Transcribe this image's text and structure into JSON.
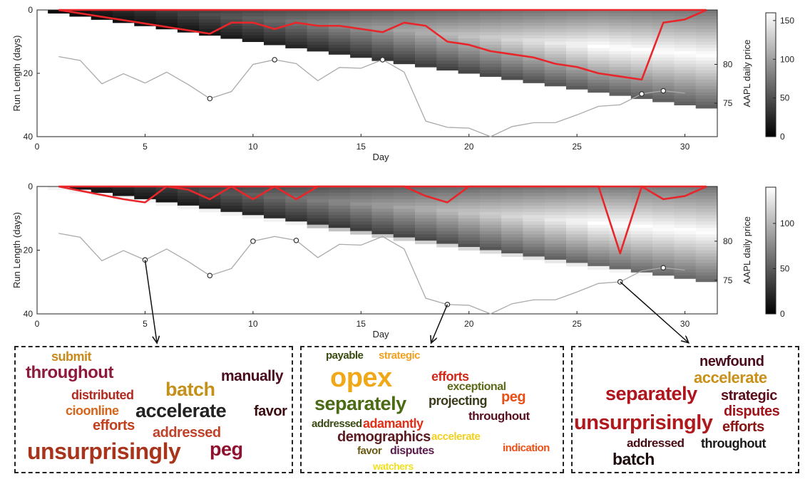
{
  "panels": [
    {
      "xlabel": "Day",
      "ylabel": "Run Length (days)",
      "ylabel2": "AAPL daily price",
      "x_ticks": [
        "0",
        "5",
        "10",
        "15",
        "20",
        "25",
        "30"
      ],
      "y_ticks": [
        "0",
        "20",
        "40"
      ],
      "price_ticks": [
        "80",
        "75"
      ],
      "colorbar_ticks": [
        "150",
        "100",
        "50",
        "0"
      ]
    },
    {
      "xlabel": "Day",
      "ylabel": "Run Length (days)",
      "ylabel2": "AAPL daily price",
      "x_ticks": [
        "0",
        "5",
        "10",
        "15",
        "20",
        "25",
        "30"
      ],
      "y_ticks": [
        "0",
        "20",
        "40"
      ],
      "price_ticks": [
        "80",
        "75"
      ],
      "colorbar_ticks": [
        "100",
        "50",
        "0"
      ]
    }
  ],
  "clouds": [
    {
      "words": [
        {
          "text": "submit",
          "color": "#c98a1a"
        },
        {
          "text": "throughout",
          "color": "#8e1a3c"
        },
        {
          "text": "manually",
          "color": "#4a0c1c"
        },
        {
          "text": "batch",
          "color": "#c49018"
        },
        {
          "text": "distributed",
          "color": "#b02a20"
        },
        {
          "text": "cioonline",
          "color": "#d4651a"
        },
        {
          "text": "accelerate",
          "color": "#222222"
        },
        {
          "text": "favor",
          "color": "#3a0c10"
        },
        {
          "text": "efforts",
          "color": "#c2401e"
        },
        {
          "text": "addressed",
          "color": "#c0422a"
        },
        {
          "text": "unsurprisingly",
          "color": "#a8341c"
        },
        {
          "text": "peg",
          "color": "#8e1230"
        }
      ]
    },
    {
      "words": [
        {
          "text": "payable",
          "color": "#3a4a10"
        },
        {
          "text": "strategic",
          "color": "#f0a020"
        },
        {
          "text": "opex",
          "color": "#f0a818"
        },
        {
          "text": "efforts",
          "color": "#d02818"
        },
        {
          "text": "exceptional",
          "color": "#5a6a18"
        },
        {
          "text": "separately",
          "color": "#4a6a14"
        },
        {
          "text": "projecting",
          "color": "#3a3a1a"
        },
        {
          "text": "peg",
          "color": "#e85018"
        },
        {
          "text": "throughout",
          "color": "#5a1020"
        },
        {
          "text": "addressed",
          "color": "#3a4a14"
        },
        {
          "text": "adamantly",
          "color": "#e03018"
        },
        {
          "text": "accelerate",
          "color": "#f0d020"
        },
        {
          "text": "demographics",
          "color": "#5a1c20"
        },
        {
          "text": "favor",
          "color": "#6a5a14"
        },
        {
          "text": "disputes",
          "color": "#5a1c4c"
        },
        {
          "text": "indication",
          "color": "#f05018"
        },
        {
          "text": "watchers",
          "color": "#f0e020"
        }
      ]
    },
    {
      "words": [
        {
          "text": "newfound",
          "color": "#4a0c1c"
        },
        {
          "text": "accelerate",
          "color": "#c89018"
        },
        {
          "text": "separately",
          "color": "#b0141c"
        },
        {
          "text": "strategic",
          "color": "#5a0c18"
        },
        {
          "text": "disputes",
          "color": "#a0141c"
        },
        {
          "text": "unsurprisingly",
          "color": "#b0181c"
        },
        {
          "text": "efforts",
          "color": "#8a1414"
        },
        {
          "text": "addressed",
          "color": "#4a0c14"
        },
        {
          "text": "throughout",
          "color": "#1a1a1a"
        },
        {
          "text": "batch",
          "color": "#1a0a0a"
        }
      ]
    }
  ],
  "chart_data": [
    {
      "type": "heatmap",
      "xlabel": "Day",
      "ylabel": "Run Length (days)",
      "ylabel2": "AAPL daily price",
      "xlim": [
        0,
        31.5
      ],
      "ylim": [
        0,
        40
      ],
      "price_lim": [
        70.7,
        87
      ],
      "colorbar_range": [
        0,
        160
      ],
      "colormap": "gray",
      "series": [
        {
          "color": "#e8262a",
          "x": [
            1,
            8,
            9,
            10,
            11,
            12,
            13,
            14,
            15,
            16,
            17,
            18,
            19,
            20,
            21,
            22,
            23,
            24,
            25,
            26,
            27,
            28,
            29,
            30,
            31
          ],
          "y": [
            0,
            7.5,
            4,
            4,
            6,
            4,
            5,
            5,
            6,
            7,
            4,
            5,
            10,
            11,
            13,
            14,
            15,
            17,
            18,
            20,
            21,
            22,
            4,
            3,
            0
          ]
        },
        {
          "color": "#aaaaaa",
          "x": [
            1,
            2,
            3,
            4,
            5,
            6,
            7,
            8,
            9,
            10,
            11,
            12,
            13,
            14,
            15,
            16,
            17,
            18,
            19,
            20,
            21,
            22,
            23,
            24,
            25,
            26,
            27,
            28,
            29,
            30
          ],
          "y": [
            81,
            80.5,
            77.5,
            78.8,
            77.6,
            79,
            77.4,
            75.6,
            76.5,
            80,
            80.6,
            80.1,
            77.9,
            79.6,
            79.5,
            80.6,
            79,
            72.7,
            71.9,
            71.8,
            70.7,
            72,
            72.5,
            72.5,
            73.5,
            74.6,
            74.8,
            76.2,
            76.6,
            76.3
          ]
        }
      ],
      "markers": [
        {
          "x": 8,
          "y": 75.6
        },
        {
          "x": 11,
          "y": 80.6
        },
        {
          "x": 16,
          "y": 80.6
        },
        {
          "x": 28,
          "y": 76.2
        },
        {
          "x": 29,
          "y": 76.6
        }
      ]
    },
    {
      "type": "heatmap",
      "xlabel": "Day",
      "ylabel": "Run Length (days)",
      "ylabel2": "AAPL daily price",
      "xlim": [
        0,
        31.5
      ],
      "ylim": [
        0,
        40
      ],
      "price_lim": [
        70.7,
        87
      ],
      "colorbar_range": [
        0,
        140
      ],
      "colormap": "gray",
      "series": [
        {
          "color": "#e8262a",
          "x": [
            1,
            4,
            5,
            6,
            7,
            8,
            9,
            10,
            11,
            12,
            13,
            14,
            15,
            16,
            17,
            18,
            19,
            20,
            21,
            22,
            23,
            24,
            25,
            26,
            27,
            28,
            29,
            30,
            31
          ],
          "y": [
            0,
            4,
            5,
            0,
            1,
            4,
            0,
            4,
            0,
            4,
            0,
            0,
            0,
            0,
            0,
            3,
            5,
            0,
            0,
            0,
            0,
            0,
            0,
            0,
            21,
            0,
            4,
            3,
            0
          ]
        },
        {
          "color": "#aaaaaa",
          "x": [
            1,
            2,
            3,
            4,
            5,
            6,
            7,
            8,
            9,
            10,
            11,
            12,
            13,
            14,
            15,
            16,
            17,
            18,
            19,
            20,
            21,
            22,
            23,
            24,
            25,
            26,
            27,
            28,
            29,
            30
          ],
          "y": [
            81,
            80.5,
            77.5,
            78.8,
            77.6,
            79,
            77.4,
            75.6,
            76.5,
            80,
            80.6,
            80.1,
            77.9,
            79.6,
            79.5,
            80.6,
            79,
            72.7,
            71.9,
            71.8,
            70.7,
            72,
            72.5,
            72.5,
            73.5,
            74.6,
            74.8,
            76.2,
            76.6,
            76.3
          ]
        }
      ],
      "markers": [
        {
          "x": 5,
          "y": 77.6
        },
        {
          "x": 8,
          "y": 75.6
        },
        {
          "x": 10,
          "y": 80.0
        },
        {
          "x": 12,
          "y": 80.1
        },
        {
          "x": 19,
          "y": 71.9
        },
        {
          "x": 27,
          "y": 74.8
        },
        {
          "x": 29,
          "y": 76.6
        }
      ]
    }
  ]
}
